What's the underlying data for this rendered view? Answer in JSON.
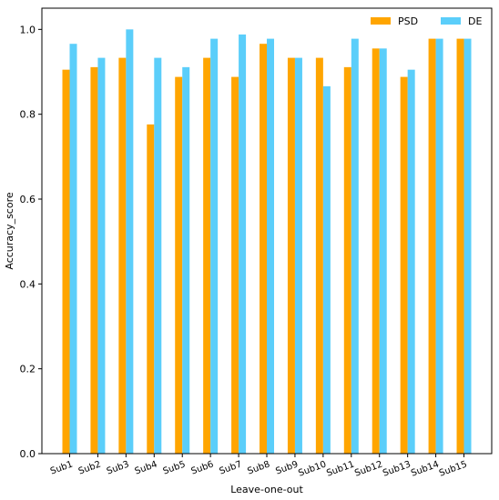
{
  "chart_data": {
    "type": "bar",
    "xlabel": "Leave-one-out",
    "ylabel": "Accuracy_score",
    "ylim": [
      0,
      1.05
    ],
    "yticks": [
      0.0,
      0.2,
      0.4,
      0.6,
      0.8,
      1.0
    ],
    "ytick_labels": [
      "0.0",
      "0.2",
      "0.4",
      "0.6",
      "0.8",
      "1.0"
    ],
    "categories": [
      "Sub1",
      "Sub2",
      "Sub3",
      "Sub4",
      "Sub5",
      "Sub6",
      "Sub7",
      "Sub8",
      "Sub9",
      "Sub10",
      "Sub11",
      "Sub12",
      "Sub13",
      "Sub14",
      "Sub15"
    ],
    "legend_position": "top-right",
    "grid": false,
    "series": [
      {
        "name": "PSD",
        "color": "#FFA500",
        "values": [
          0.905,
          0.911,
          0.933,
          0.776,
          0.888,
          0.933,
          0.888,
          0.966,
          0.933,
          0.933,
          0.911,
          0.955,
          0.888,
          0.978,
          0.978
        ]
      },
      {
        "name": "DE",
        "color": "#5BCEFA",
        "values": [
          0.966,
          0.933,
          1.0,
          0.933,
          0.911,
          0.978,
          0.988,
          0.978,
          0.933,
          0.866,
          0.978,
          0.955,
          0.905,
          0.978,
          0.978
        ]
      }
    ]
  }
}
